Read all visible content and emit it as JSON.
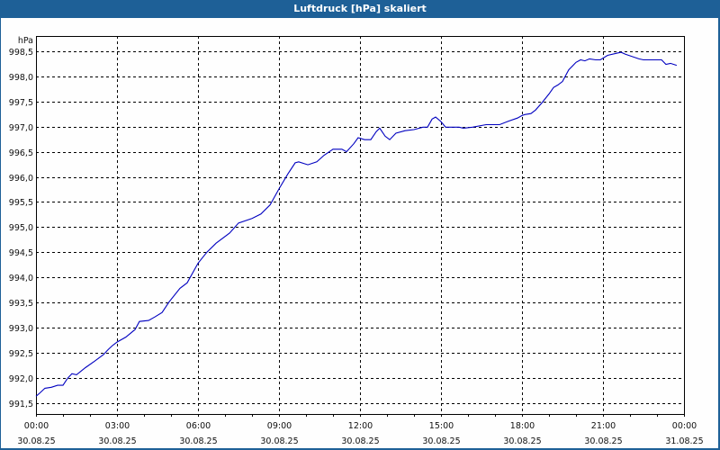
{
  "window": {
    "title": "Luftdruck [hPa] skaliert"
  },
  "colors": {
    "title_bar": "#1e6097",
    "line": "#0000c0",
    "grid": "#000000",
    "background": "#fefefe"
  },
  "chart_data": {
    "type": "line",
    "title": "Luftdruck [hPa] skaliert",
    "xlabel": "",
    "ylabel": "hPa",
    "ylim": [
      991.27,
      998.81
    ],
    "grid": true,
    "legend": "none",
    "y_ticks": [
      "998,5",
      "998,0",
      "997,5",
      "997,0",
      "996,5",
      "996,0",
      "995,5",
      "995,0",
      "994,5",
      "994,0",
      "993,5",
      "993,0",
      "992,5",
      "992,0",
      "991,5"
    ],
    "x_ticks": [
      {
        "time": "00:00",
        "date": "30.08.25"
      },
      {
        "time": "03:00",
        "date": "30.08.25"
      },
      {
        "time": "06:00",
        "date": "30.08.25"
      },
      {
        "time": "09:00",
        "date": "30.08.25"
      },
      {
        "time": "12:00",
        "date": "30.08.25"
      },
      {
        "time": "15:00",
        "date": "30.08.25"
      },
      {
        "time": "18:00",
        "date": "30.08.25"
      },
      {
        "time": "21:00",
        "date": "30.08.25"
      },
      {
        "time": "00:00",
        "date": "31.08.25"
      }
    ],
    "series": [
      {
        "name": "Luftdruck",
        "x_hours": [
          0,
          0.13,
          0.33,
          0.57,
          0.8,
          1.0,
          1.17,
          1.33,
          1.5,
          1.83,
          2.17,
          2.5,
          2.67,
          2.83,
          3.0,
          3.33,
          3.67,
          3.83,
          4.17,
          4.4,
          4.67,
          4.93,
          5.33,
          5.6,
          6.0,
          6.33,
          6.67,
          7.17,
          7.5,
          8.0,
          8.33,
          8.67,
          9.0,
          9.33,
          9.6,
          9.73,
          10.07,
          10.4,
          10.67,
          11.0,
          11.33,
          11.5,
          11.77,
          11.93,
          12.17,
          12.4,
          12.6,
          12.73,
          12.93,
          13.1,
          13.33,
          13.67,
          14.0,
          14.33,
          14.5,
          14.67,
          14.8,
          15.0,
          15.17,
          15.33,
          15.67,
          15.83,
          16.17,
          16.67,
          17.17,
          17.5,
          17.83,
          18.0,
          18.1,
          18.33,
          18.5,
          18.73,
          19.0,
          19.17,
          19.33,
          19.5,
          19.73,
          20.0,
          20.17,
          20.33,
          20.5,
          20.73,
          20.9,
          21.17,
          21.5,
          21.67,
          21.83,
          22.0,
          22.33,
          22.5,
          22.67,
          23.17,
          23.33,
          23.5,
          23.73
        ],
        "values": [
          991.63,
          991.69,
          991.79,
          991.81,
          991.85,
          991.85,
          991.99,
          992.08,
          992.06,
          992.2,
          992.33,
          992.46,
          992.56,
          992.64,
          992.71,
          992.81,
          992.96,
          993.12,
          993.14,
          993.21,
          993.3,
          993.51,
          993.78,
          993.89,
          994.28,
          994.5,
          994.68,
          994.88,
          995.08,
          995.17,
          995.26,
          995.44,
          995.76,
          996.06,
          996.28,
          996.3,
          996.24,
          996.3,
          996.43,
          996.55,
          996.55,
          996.5,
          996.66,
          996.78,
          996.74,
          996.74,
          996.9,
          996.97,
          996.81,
          996.74,
          996.87,
          996.92,
          996.94,
          996.99,
          996.99,
          997.15,
          997.19,
          997.1,
          996.99,
          996.99,
          996.99,
          996.97,
          996.99,
          997.04,
          997.04,
          997.11,
          997.17,
          997.22,
          997.24,
          997.26,
          997.33,
          997.47,
          997.65,
          997.78,
          997.83,
          997.9,
          998.13,
          998.28,
          998.33,
          998.31,
          998.35,
          998.33,
          998.33,
          998.42,
          998.46,
          998.48,
          998.44,
          998.41,
          998.35,
          998.33,
          998.33,
          998.33,
          998.24,
          998.26,
          998.22
        ]
      }
    ]
  }
}
